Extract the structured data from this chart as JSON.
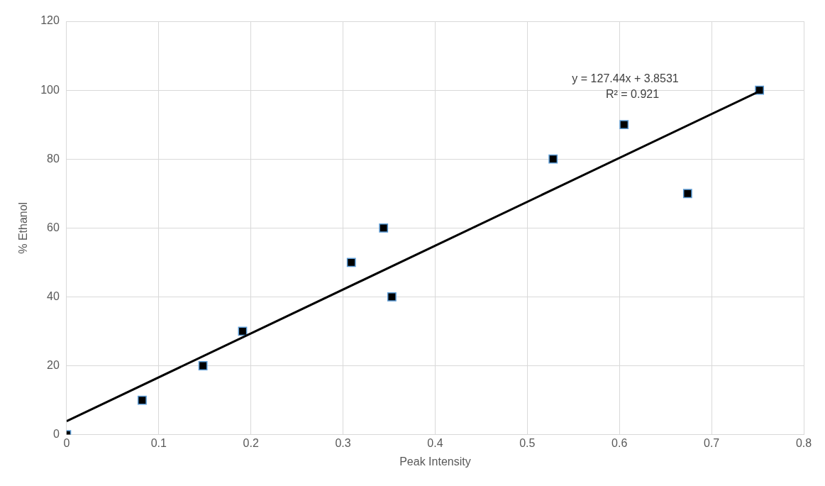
{
  "chart_data": {
    "type": "scatter",
    "xlabel": "Peak Intensity",
    "ylabel": "% Ethanol",
    "series": [
      {
        "marker": "square",
        "color": "#000000",
        "x": [
          0,
          0.082,
          0.148,
          0.191,
          0.309,
          0.344,
          0.353,
          0.528,
          0.605,
          0.674,
          0.752
        ],
        "values": [
          0,
          10,
          20,
          30,
          50,
          60,
          40,
          80,
          90,
          70,
          100
        ]
      },
      {
        "type": "line",
        "marker": "none",
        "color": "#000000",
        "x": [
          0,
          0.752
        ],
        "values": [
          3.9,
          99.7
        ]
      }
    ],
    "xlim": [
      0,
      0.8
    ],
    "xticks": [
      0,
      0.1,
      0.2,
      0.3,
      0.4,
      0.5,
      0.6,
      0.7,
      0.8
    ],
    "ylim": [
      0,
      120
    ],
    "yticks": [
      0,
      20,
      40,
      60,
      80,
      100,
      120
    ],
    "annotations": [
      "y = 127.44x + 3.8531",
      "R² = 0.921"
    ],
    "grid": true
  }
}
